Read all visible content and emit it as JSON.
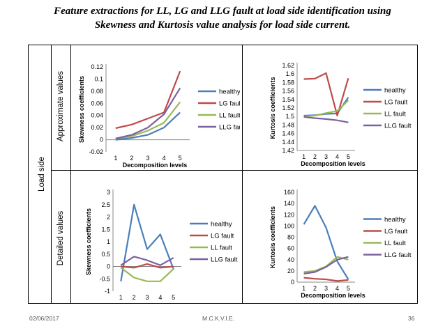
{
  "slide": {
    "title_line1": "Feature extractions for LL, LG and LLG fault at load side identification using",
    "title_line2": "Skewness and Kurtosis value analysis for load side current.",
    "side_label": "Load side",
    "row1_label": "Approximate values",
    "row2_label": "Detailed values",
    "footer_date": "02/06/2017",
    "footer_center": "M.C.K.V.I.E.",
    "footer_page": "36"
  },
  "colors": {
    "healthy": "#4a7ebb",
    "LG fault": "#be4b48",
    "LL fault": "#98b954",
    "LLG fault": "#7d60a0"
  },
  "chart_data": [
    {
      "type": "line",
      "ylabel": "Skewness coefficients",
      "xlabel": "Decomposition levels",
      "x": [
        1,
        2,
        3,
        4,
        5
      ],
      "ylim": [
        -0.02,
        0.12
      ],
      "yticks": [
        -0.02,
        0,
        0.02,
        0.04,
        0.06,
        0.08,
        0.1,
        0.12
      ],
      "ytick_labels": [
        "-0.02",
        "0",
        "0.02",
        "0.04",
        "0.06",
        "0.08",
        "0.1",
        "0.12"
      ],
      "xaxis_at": 0,
      "legend": "right",
      "series": [
        {
          "name": "healthy",
          "values": [
            0,
            0.003,
            0.008,
            0.02,
            0.045
          ]
        },
        {
          "name": "LG fault",
          "values": [
            0.019,
            0.025,
            0.035,
            0.045,
            0.113
          ]
        },
        {
          "name": "LL fault",
          "values": [
            0.002,
            0.006,
            0.015,
            0.028,
            0.062
          ]
        },
        {
          "name": "LLG fault",
          "values": [
            0.002,
            0.008,
            0.02,
            0.042,
            0.085
          ]
        }
      ]
    },
    {
      "type": "line",
      "ylabel": "Kurtosis coefficients",
      "xlabel": "Decomposition levels",
      "x": [
        1,
        2,
        3,
        4,
        5
      ],
      "ylim": [
        1.42,
        1.62
      ],
      "yticks": [
        1.42,
        1.44,
        1.46,
        1.48,
        1.5,
        1.52,
        1.54,
        1.56,
        1.58,
        1.6,
        1.62
      ],
      "ytick_labels": [
        "1.42",
        "1.44",
        "1.46",
        "1.48",
        "1.5",
        "1.52",
        "1.54",
        "1.56",
        "1.58",
        "1.6",
        "1.62"
      ],
      "xaxis_at": 1.42,
      "legend": "right",
      "series": [
        {
          "name": "healthy",
          "values": [
            1.502,
            1.503,
            1.506,
            1.507,
            1.545
          ]
        },
        {
          "name": "LG fault",
          "values": [
            1.588,
            1.589,
            1.602,
            1.502,
            1.59
          ]
        },
        {
          "name": "LL fault",
          "values": [
            1.5,
            1.502,
            1.508,
            1.513,
            1.538
          ]
        },
        {
          "name": "LLG fault",
          "values": [
            1.499,
            1.496,
            1.494,
            1.491,
            1.486
          ]
        }
      ]
    },
    {
      "type": "line",
      "ylabel": "Skewness coefficients",
      "xlabel": "Decomposition levels",
      "x": [
        1,
        2,
        3,
        4,
        5
      ],
      "ylim": [
        -1,
        3
      ],
      "yticks": [
        -1,
        -0.5,
        0,
        0.5,
        1,
        1.5,
        2,
        2.5,
        3
      ],
      "ytick_labels": [
        "-1",
        "-0.5",
        "0",
        "0.5",
        "1",
        "1.5",
        "2",
        "2.5",
        "3"
      ],
      "xaxis_at": 0,
      "legend": "right",
      "series": [
        {
          "name": "healthy",
          "values": [
            -0.6,
            2.5,
            0.7,
            1.3,
            -0.1
          ]
        },
        {
          "name": "LG fault",
          "values": [
            0,
            -0.05,
            0.1,
            -0.05,
            0
          ]
        },
        {
          "name": "LL fault",
          "values": [
            -0.05,
            -0.45,
            -0.6,
            -0.6,
            -0.1
          ]
        },
        {
          "name": "LLG fault",
          "values": [
            0.05,
            0.4,
            0.25,
            0.05,
            0.35
          ]
        }
      ]
    },
    {
      "type": "line",
      "ylabel": "Kurtosis coefficients",
      "xlabel": "Decomposition levels",
      "x": [
        1,
        2,
        3,
        4,
        5
      ],
      "ylim": [
        0,
        160
      ],
      "yticks": [
        0,
        20,
        40,
        60,
        80,
        100,
        120,
        140,
        160
      ],
      "ytick_labels": [
        "0",
        "20",
        "40",
        "60",
        "80",
        "100",
        "120",
        "140",
        "160"
      ],
      "xaxis_at": 0,
      "legend": "right",
      "series": [
        {
          "name": "healthy",
          "values": [
            103,
            136,
            97,
            37,
            5
          ]
        },
        {
          "name": "LG fault",
          "values": [
            8,
            6,
            5,
            2,
            4
          ]
        },
        {
          "name": "LL fault",
          "values": [
            18,
            20,
            28,
            45,
            40
          ]
        },
        {
          "name": "LLG fault",
          "values": [
            15,
            18,
            27,
            40,
            45
          ]
        }
      ]
    }
  ]
}
